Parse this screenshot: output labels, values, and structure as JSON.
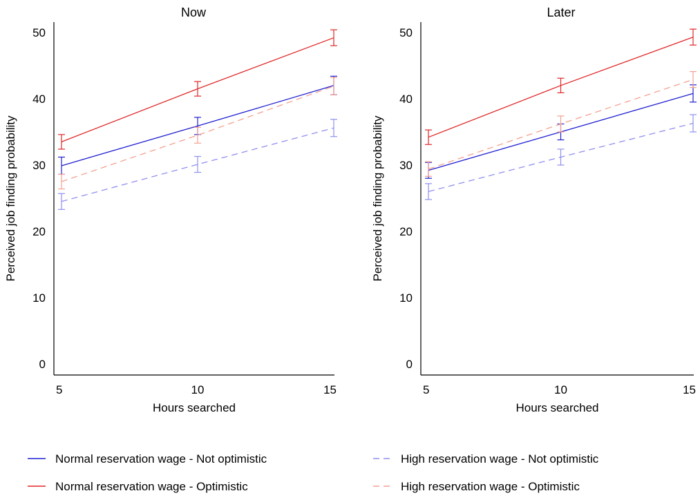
{
  "chart_data": [
    {
      "type": "line",
      "title": "Now",
      "xlabel": "Hours searched",
      "ylabel": "Perceived job finding probability",
      "x": [
        5,
        10,
        15
      ],
      "xticks": [
        "5",
        "10",
        "15"
      ],
      "ylim": [
        0,
        50
      ],
      "yticks": [
        "0",
        "10",
        "20",
        "30",
        "40",
        "50"
      ],
      "grid": false,
      "series": [
        {
          "name": "Normal reservation wage - Not optimistic",
          "color": "#1f1fd0",
          "dash": "solid",
          "values": [
            29.9,
            35.9,
            42.0
          ],
          "err_low": [
            28.6,
            34.6,
            40.6
          ],
          "err_high": [
            31.2,
            37.2,
            43.4
          ]
        },
        {
          "name": "Normal reservation wage - Optimistic",
          "color": "#e02626",
          "dash": "solid",
          "values": [
            33.5,
            41.5,
            49.2
          ],
          "err_low": [
            32.4,
            40.4,
            48.0
          ],
          "err_high": [
            34.6,
            42.6,
            50.4
          ]
        },
        {
          "name": "High reservation wage - Not optimistic",
          "color": "#8f8ff0",
          "dash": "dashed",
          "values": [
            24.5,
            30.1,
            35.6
          ],
          "err_low": [
            23.3,
            28.9,
            34.3
          ],
          "err_high": [
            25.7,
            31.3,
            36.9
          ]
        },
        {
          "name": "High reservation wage - Optimistic",
          "color": "#f5a08f",
          "dash": "dashed",
          "values": [
            27.5,
            34.5,
            41.9
          ],
          "err_low": [
            26.4,
            33.3,
            40.6
          ],
          "err_high": [
            28.6,
            35.7,
            43.2
          ]
        }
      ]
    },
    {
      "type": "line",
      "title": "Later",
      "xlabel": "Hours searched",
      "ylabel": "Perceived job finding probability",
      "x": [
        5,
        10,
        15
      ],
      "xticks": [
        "5",
        "10",
        "15"
      ],
      "ylim": [
        0,
        50
      ],
      "yticks": [
        "0",
        "10",
        "20",
        "30",
        "40",
        "50"
      ],
      "grid": false,
      "series": [
        {
          "name": "Normal reservation wage - Not optimistic",
          "color": "#1f1fd0",
          "dash": "solid",
          "values": [
            29.2,
            35.0,
            40.8
          ],
          "err_low": [
            28.0,
            33.8,
            39.5
          ],
          "err_high": [
            30.4,
            36.2,
            42.1
          ]
        },
        {
          "name": "Normal reservation wage - Optimistic",
          "color": "#e02626",
          "dash": "solid",
          "values": [
            34.2,
            42.0,
            49.3
          ],
          "err_low": [
            33.1,
            40.9,
            48.1
          ],
          "err_high": [
            35.3,
            43.1,
            50.5
          ]
        },
        {
          "name": "High reservation wage - Not optimistic",
          "color": "#8f8ff0",
          "dash": "dashed",
          "values": [
            26.0,
            31.2,
            36.3
          ],
          "err_low": [
            24.8,
            30.0,
            35.0
          ],
          "err_high": [
            27.2,
            32.4,
            37.6
          ]
        },
        {
          "name": "High reservation wage - Optimistic",
          "color": "#f5a08f",
          "dash": "dashed",
          "values": [
            29.4,
            36.2,
            42.9
          ],
          "err_low": [
            28.3,
            35.0,
            41.7
          ],
          "err_high": [
            30.5,
            37.4,
            44.1
          ]
        }
      ]
    }
  ],
  "legend": {
    "placement": "bottom",
    "items": [
      {
        "label": "Normal reservation wage - Not optimistic",
        "color": "#1f1fd0",
        "dash": "solid"
      },
      {
        "label": "High reservation wage - Not optimistic",
        "color": "#8f8ff0",
        "dash": "dashed"
      },
      {
        "label": "Normal reservation wage - Optimistic",
        "color": "#e02626",
        "dash": "solid"
      },
      {
        "label": "High reservation wage - Optimistic",
        "color": "#f5a08f",
        "dash": "dashed"
      }
    ]
  }
}
